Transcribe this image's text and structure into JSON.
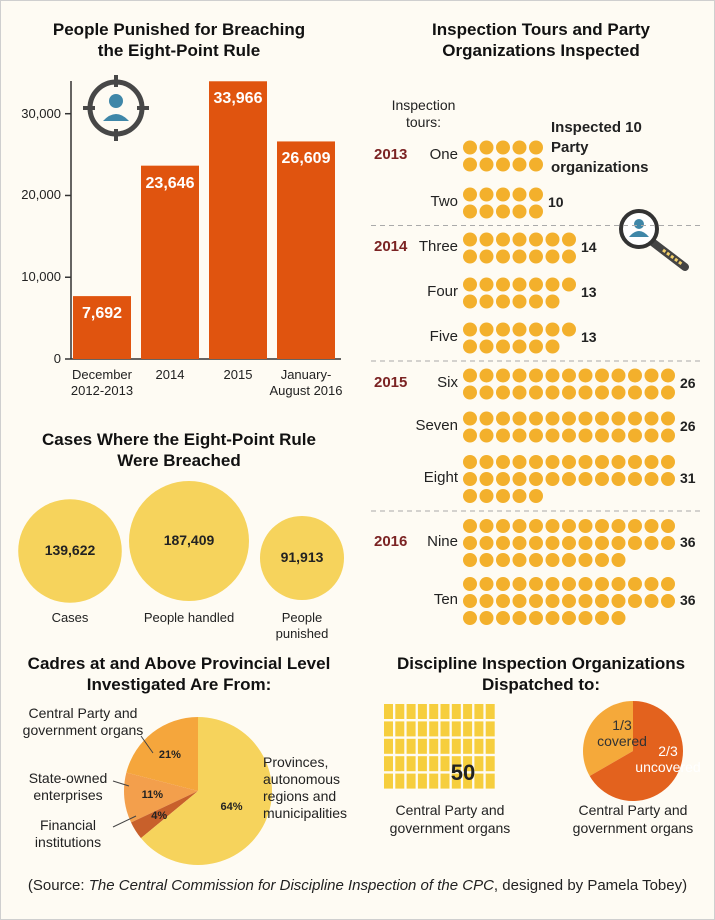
{
  "chart_data": [
    {
      "type": "bar",
      "title": "People Punished for Breaching the Eight-Point Rule",
      "categories": [
        "December 2012-2013",
        "2014",
        "2015",
        "January-August 2016"
      ],
      "values": [
        7692,
        23646,
        33966,
        26609
      ],
      "value_labels": [
        "7,692",
        "23,646",
        "33,966",
        "26,609"
      ],
      "color": "#e0540f",
      "ylim": [
        0,
        34000
      ],
      "yticks": [
        0,
        {
          "value": 10000,
          "label": "10,000"
        },
        {
          "value": 20000,
          "label": "20,000"
        },
        {
          "value": 30000,
          "label": "30,000"
        }
      ]
    },
    {
      "type": "bubble",
      "title": "Cases Where the Eight-Point Rule Were Breached",
      "categories": [
        "Cases",
        "People handled",
        "People punished"
      ],
      "values": [
        139622,
        187409,
        91913
      ],
      "value_labels": [
        "139,622",
        "187,409",
        "91,913"
      ],
      "color": "#f6d35c"
    },
    {
      "type": "pie",
      "title": "Cadres at and Above Provincial Level Investigated Are From:",
      "categories": [
        "Central Party and government organs",
        "State-owned enterprises",
        "Financial institutions",
        "Provinces, autonomous regions and municipalities"
      ],
      "values": [
        21,
        11,
        4,
        64
      ],
      "value_labels": [
        "21%",
        "11%",
        "4%",
        "64%"
      ],
      "colors": [
        "#f5a63c",
        "#f39f4c",
        "#c8602b",
        "#f6d35c"
      ]
    },
    {
      "type": "dots",
      "title": "Inspection Tours and Party Organizations Inspected",
      "axis_label": "Inspection tours:",
      "groups": [
        "2013",
        null,
        "2014",
        null,
        null,
        "2015",
        null,
        null,
        "2016",
        null
      ],
      "categories": [
        "One",
        "Two",
        "Three",
        "Four",
        "Five",
        "Six",
        "Seven",
        "Eight",
        "Nine",
        "Ten"
      ],
      "values": [
        10,
        10,
        14,
        13,
        13,
        26,
        26,
        31,
        36,
        36
      ],
      "value_labels": [
        "Inspected 10 Party organizations",
        "10",
        "14",
        "13",
        "13",
        "26",
        "26",
        "31",
        "36",
        "36"
      ],
      "color": "#f3b02c"
    },
    {
      "type": "waffle",
      "title": "Discipline Inspection Organizations Dispatched to:",
      "categories": [
        "Central Party and government organs"
      ],
      "values": [
        50
      ],
      "color": "#f6ce3d"
    },
    {
      "type": "pie",
      "categories": [
        "covered",
        "uncovered"
      ],
      "values": [
        0.3333,
        0.6667
      ],
      "value_labels": [
        "1/3",
        "2/3"
      ],
      "colors": [
        "#f5a93a",
        "#e3621e"
      ],
      "caption": "Central Party and government organs"
    }
  ],
  "source": {
    "label": "Source:",
    "title": "The Central Commission for Discipline Inspection of the CPC",
    "credit": "designed by Pamela Tobey"
  }
}
